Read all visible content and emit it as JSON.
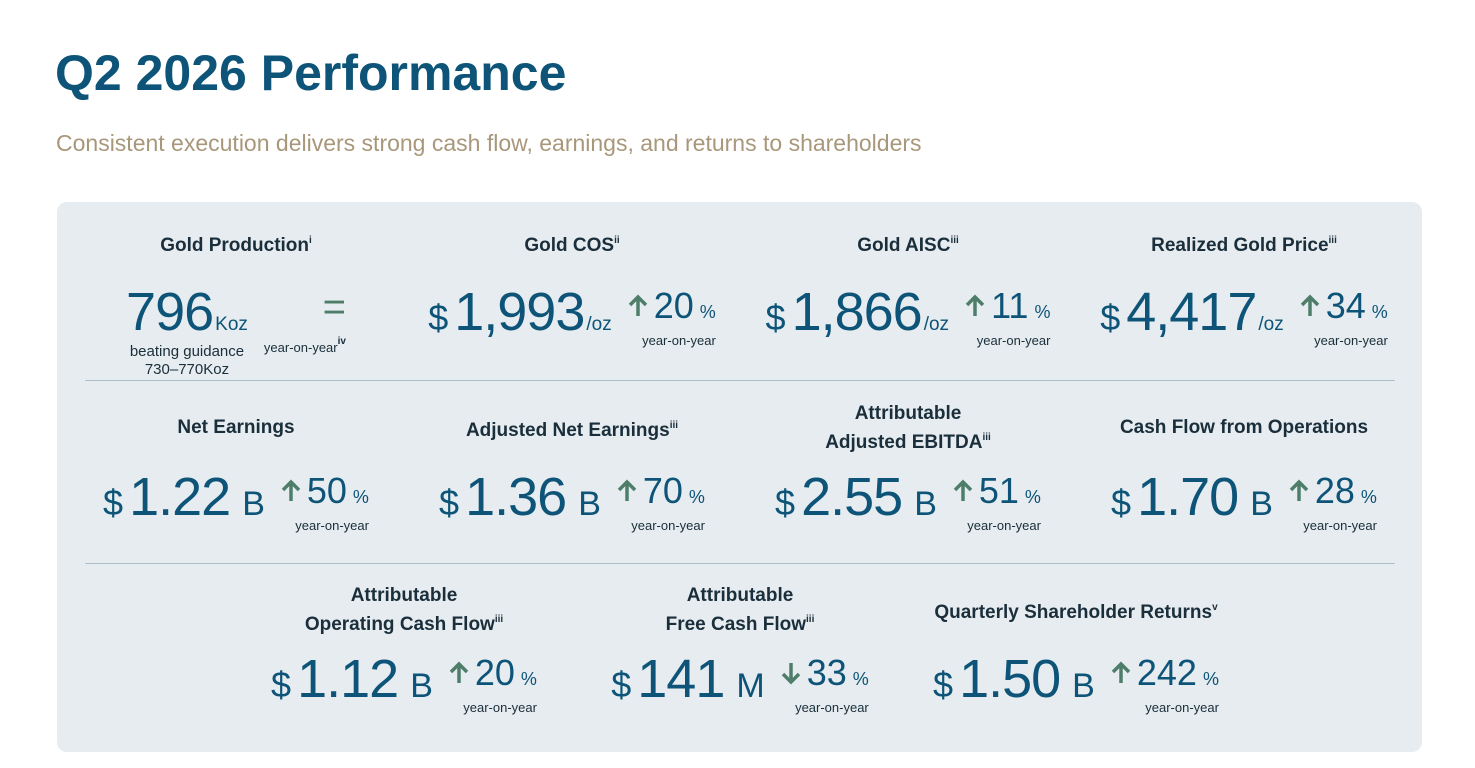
{
  "header": {
    "title": "Q2 2026 Performance",
    "subtitle": "Consistent execution delivers strong cash flow, earnings, and returns to shareholders"
  },
  "rows": [
    [
      {
        "label": [
          "Gold Production"
        ],
        "footnote": "i",
        "value": "796",
        "unit": "Koz",
        "notes": [
          "beating guidance",
          "730–770Koz"
        ],
        "change": "=",
        "comparison": "year-on-year",
        "comparison_footnote": "iv"
      },
      {
        "label": [
          "Gold COS"
        ],
        "footnote": "ii",
        "currency": "$",
        "value": "1,993",
        "unit": "/oz",
        "direction": "up",
        "change": "20",
        "change_unit": "%",
        "comparison": "year-on-year"
      },
      {
        "label": [
          "Gold AISC"
        ],
        "footnote": "iii",
        "currency": "$",
        "value": "1,866",
        "unit": "/oz",
        "direction": "up",
        "change": "11",
        "change_unit": "%",
        "comparison": "year-on-year"
      },
      {
        "label": [
          "Realized Gold Price"
        ],
        "footnote": "iii",
        "currency": "$",
        "value": "4,417",
        "unit": "/oz",
        "direction": "up",
        "change": "34",
        "change_unit": "%",
        "comparison": "year-on-year"
      }
    ],
    [
      {
        "label": [
          "Net Earnings"
        ],
        "currency": "$",
        "value": "1.22",
        "unit": "B",
        "direction": "up",
        "change": "50",
        "change_unit": "%",
        "comparison": "year-on-year"
      },
      {
        "label": [
          "Adjusted Net Earnings"
        ],
        "footnote": "iii",
        "currency": "$",
        "value": "1.36",
        "unit": "B",
        "direction": "up",
        "change": "70",
        "change_unit": "%",
        "comparison": "year-on-year"
      },
      {
        "label": [
          "Attributable",
          "Adjusted EBITDA"
        ],
        "footnote": "iii",
        "currency": "$",
        "value": "2.55",
        "unit": "B",
        "direction": "up",
        "change": "51",
        "change_unit": "%",
        "comparison": "year-on-year"
      },
      {
        "label": [
          "Cash Flow from Operations"
        ],
        "currency": "$",
        "value": "1.70",
        "unit": "B",
        "direction": "up",
        "change": "28",
        "change_unit": "%",
        "comparison": "year-on-year"
      }
    ],
    [
      {
        "label": [
          "Attributable",
          "Operating Cash Flow"
        ],
        "footnote": "iii",
        "currency": "$",
        "value": "1.12",
        "unit": "B",
        "direction": "up",
        "change": "20",
        "change_unit": "%",
        "comparison": "year-on-year"
      },
      {
        "label": [
          "Attributable",
          "Free Cash Flow"
        ],
        "footnote": "iii",
        "currency": "$",
        "value": "141",
        "unit": "M",
        "direction": "down",
        "change": "33",
        "change_unit": "%",
        "comparison": "year-on-year"
      },
      {
        "label": [
          "Quarterly Shareholder Returns"
        ],
        "footnote": "v",
        "currency": "$",
        "value": "1.50",
        "unit": "B",
        "direction": "up",
        "change": "242",
        "change_unit": "%",
        "comparison": "year-on-year"
      }
    ]
  ]
}
